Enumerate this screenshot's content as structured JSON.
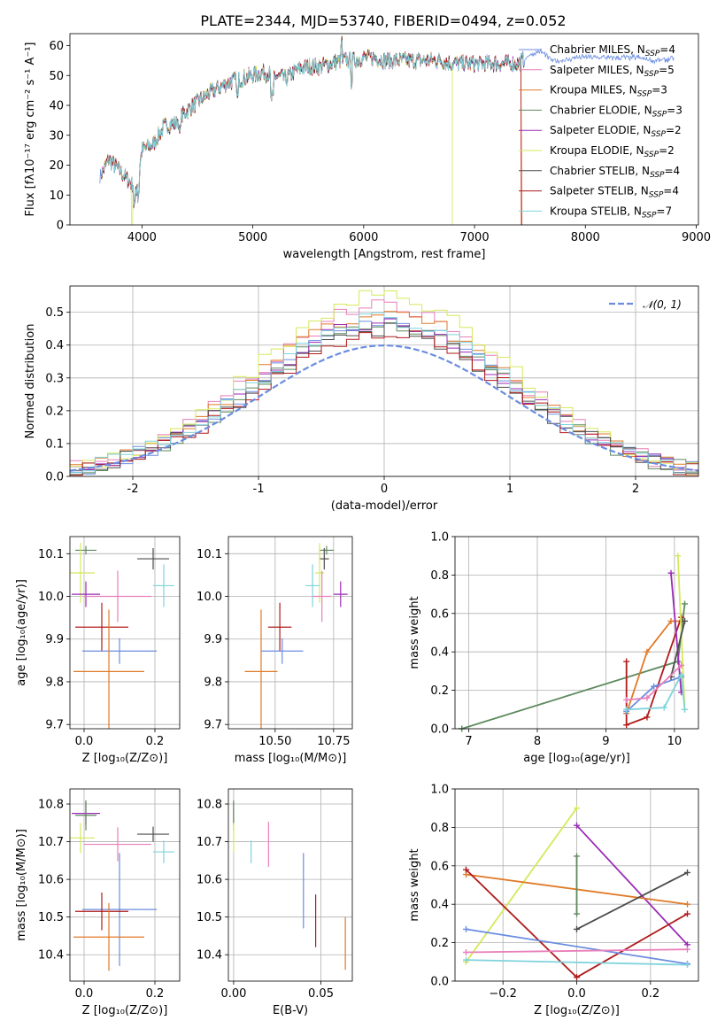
{
  "title": "PLATE=2344, MJD=53740, FIBERID=0494, z=0.052",
  "colors": {
    "chabrier_miles": "#6b8de0",
    "salpeter_miles": "#e87fb9",
    "kroupa_miles": "#e07a28",
    "chabrier_elodie": "#5e8a5e",
    "salpeter_elodie": "#9a2bb5",
    "kroupa_elodie": "#d6e85a",
    "chabrier_stelib": "#4d4d4d",
    "salpeter_stelib": "#b01a1a",
    "kroupa_stelib": "#7fd3dc",
    "gaussian": "#6b8de0"
  },
  "legend_spectrum": [
    {
      "label": "Chabrier MILES, N",
      "sub": "SSP",
      "val": "=4",
      "key": "chabrier_miles"
    },
    {
      "label": "Salpeter MILES, N",
      "sub": "SSP",
      "val": "=5",
      "key": "salpeter_miles"
    },
    {
      "label": "Kroupa MILES, N",
      "sub": "SSP",
      "val": "=3",
      "key": "kroupa_miles"
    },
    {
      "label": "Chabrier ELODIE, N",
      "sub": "SSP",
      "val": "=3",
      "key": "chabrier_elodie"
    },
    {
      "label": "Salpeter ELODIE, N",
      "sub": "SSP",
      "val": "=2",
      "key": "salpeter_elodie"
    },
    {
      "label": "Kroupa ELODIE, N",
      "sub": "SSP",
      "val": "=2",
      "key": "kroupa_elodie"
    },
    {
      "label": "Chabrier STELIB, N",
      "sub": "SSP",
      "val": "=4",
      "key": "chabrier_stelib"
    },
    {
      "label": "Salpeter STELIB, N",
      "sub": "SSP",
      "val": "=4",
      "key": "salpeter_stelib"
    },
    {
      "label": "Kroupa STELIB, N",
      "sub": "SSP",
      "val": "=7",
      "key": "kroupa_stelib"
    }
  ],
  "legend_hist": "𝒩(0, 1)",
  "chart_data": [
    {
      "type": "line",
      "name": "spectrum",
      "xlabel": "wavelength [Angstrom, rest frame]",
      "ylabel": "Flux [f_λ 10^-17 erg cm^-2 s^-1 A^-1]",
      "xlim": [
        3350,
        9020
      ],
      "ylim": [
        0,
        64
      ],
      "xticks": [
        4000,
        5000,
        6000,
        7000,
        8000,
        9000
      ],
      "yticks": [
        0,
        10,
        20,
        30,
        40,
        50,
        60
      ],
      "x": [
        3620,
        3700,
        3800,
        3900,
        3950,
        4000,
        4100,
        4200,
        4300,
        4400,
        4500,
        4600,
        4700,
        4800,
        4900,
        5000,
        5100,
        5200,
        5300,
        5400,
        5500,
        5600,
        5700,
        5800,
        5900,
        6000,
        6100,
        6200,
        6300,
        6400,
        6500,
        6600,
        6700,
        6800,
        6900,
        7000,
        7100,
        7200,
        7300,
        7400,
        7500,
        7600,
        7700,
        7800,
        7900,
        8000,
        8100,
        8200,
        8300,
        8400,
        8500,
        8600,
        8700,
        8800
      ],
      "y": [
        16,
        22,
        18,
        14,
        12,
        25,
        27,
        33,
        34,
        38,
        41,
        44,
        46,
        48,
        49,
        50,
        51,
        50,
        49,
        52,
        53,
        53,
        54,
        55,
        55,
        56,
        56,
        55,
        55,
        55,
        55,
        55,
        55,
        54,
        54,
        54,
        54,
        54,
        54,
        54,
        57,
        58,
        55,
        55,
        56,
        56,
        56,
        56,
        56,
        56,
        56,
        55,
        55,
        56
      ],
      "cutoffs": [
        {
          "key": "kroupa_elodie",
          "x": 6800
        },
        {
          "key": "salpeter_miles",
          "x": 7400
        },
        {
          "key": "kroupa_miles",
          "x": 7420
        },
        {
          "key": "salpeter_stelib",
          "x": 7440
        },
        {
          "key": "kroupa_elodie",
          "x": 3910
        }
      ]
    },
    {
      "type": "histogram",
      "name": "residuals",
      "xlabel": "(data-model)/error",
      "ylabel": "Normed distribution",
      "xlim": [
        -2.5,
        2.5
      ],
      "ylim": [
        0,
        0.58
      ],
      "xticks": [
        -2,
        -1,
        0,
        1,
        2
      ],
      "yticks": [
        0.0,
        0.1,
        0.2,
        0.3,
        0.4,
        0.5
      ],
      "bin_width": 0.1,
      "peaks": {
        "chabrier_miles": 0.47,
        "salpeter_miles": 0.52,
        "kroupa_miles": 0.5,
        "chabrier_elodie": 0.46,
        "salpeter_elodie": 0.47,
        "kroupa_elodie": 0.55,
        "chabrier_stelib": 0.45,
        "salpeter_stelib": 0.44,
        "kroupa_stelib": 0.48
      }
    },
    {
      "type": "errorbar",
      "name": "age-vs-Z",
      "xlabel": "Z [log10(Z/Z⊙)]",
      "ylabel": "age [log10(age/yr)]",
      "xlim": [
        -0.04,
        0.27
      ],
      "ylim": [
        9.69,
        10.14
      ],
      "xticks": [
        0.0,
        0.2
      ],
      "yticks": [
        9.7,
        9.8,
        9.9,
        10.0,
        10.1
      ],
      "points": [
        {
          "key": "chabrier_elodie",
          "x": 0.005,
          "xerr": 0.03,
          "y": 10.108,
          "yerr": 0.01
        },
        {
          "key": "chabrier_stelib",
          "x": 0.195,
          "xerr": 0.045,
          "y": 10.088,
          "yerr": 0.025
        },
        {
          "key": "kroupa_elodie",
          "x": -0.01,
          "xerr": 0.04,
          "y": 10.055,
          "yerr": 0.07
        },
        {
          "key": "kroupa_stelib",
          "x": 0.225,
          "xerr": 0.03,
          "y": 10.025,
          "yerr": 0.05
        },
        {
          "key": "salpeter_elodie",
          "x": 0.005,
          "xerr": 0.04,
          "y": 10.005,
          "yerr": 0.03
        },
        {
          "key": "salpeter_miles",
          "x": 0.095,
          "xerr": 0.095,
          "y": 10.0,
          "yerr": 0.06
        },
        {
          "key": "salpeter_stelib",
          "x": 0.05,
          "xerr": 0.075,
          "y": 9.928,
          "yerr": 0.057
        },
        {
          "key": "chabrier_miles",
          "x": 0.1,
          "xerr": 0.105,
          "y": 9.872,
          "yerr": 0.03
        },
        {
          "key": "kroupa_miles",
          "x": 0.07,
          "xerr": 0.1,
          "y": 9.824,
          "yerr": 0.145
        }
      ]
    },
    {
      "type": "errorbar",
      "name": "age-vs-mass",
      "xlabel": "mass [log10(M/M⊙)]",
      "ylabel": "",
      "xlim": [
        10.3,
        10.83
      ],
      "ylim": [
        9.69,
        10.14
      ],
      "xticks": [
        10.5,
        10.75
      ],
      "yticks": [
        9.7,
        9.8,
        9.9,
        10.0,
        10.1
      ],
      "points": [
        {
          "key": "chabrier_elodie",
          "x": 10.72,
          "xerr": 0.03,
          "y": 10.108,
          "yerr": 0.01
        },
        {
          "key": "chabrier_stelib",
          "x": 10.71,
          "xerr": 0.02,
          "y": 10.088,
          "yerr": 0.025
        },
        {
          "key": "kroupa_elodie",
          "x": 10.69,
          "xerr": 0.02,
          "y": 10.055,
          "yerr": 0.07
        },
        {
          "key": "kroupa_stelib",
          "x": 10.66,
          "xerr": 0.03,
          "y": 10.025,
          "yerr": 0.05
        },
        {
          "key": "salpeter_elodie",
          "x": 10.78,
          "xerr": 0.03,
          "y": 10.005,
          "yerr": 0.03
        },
        {
          "key": "salpeter_miles",
          "x": 10.7,
          "xerr": 0.04,
          "y": 10.0,
          "yerr": 0.06
        },
        {
          "key": "salpeter_stelib",
          "x": 10.52,
          "xerr": 0.05,
          "y": 9.928,
          "yerr": 0.057
        },
        {
          "key": "chabrier_miles",
          "x": 10.53,
          "xerr": 0.09,
          "y": 9.872,
          "yerr": 0.03
        },
        {
          "key": "kroupa_miles",
          "x": 10.44,
          "xerr": 0.07,
          "y": 9.824,
          "yerr": 0.145
        }
      ]
    },
    {
      "type": "line",
      "name": "mass-weight-vs-age",
      "xlabel": "age [log10(age/yr)]",
      "ylabel": "mass weight",
      "xlim": [
        6.8,
        10.35
      ],
      "ylim": [
        0.0,
        1.0
      ],
      "xticks": [
        7,
        8,
        9,
        10
      ],
      "yticks": [
        0.0,
        0.2,
        0.4,
        0.6,
        0.8,
        1.0
      ],
      "series": [
        {
          "key": "chabrier_elodie",
          "x": [
            6.9,
            10.05,
            10.15
          ],
          "y": [
            0.0,
            0.35,
            0.65
          ]
        },
        {
          "key": "kroupa_miles",
          "x": [
            9.3,
            9.6,
            9.95,
            10.1
          ],
          "y": [
            0.08,
            0.4,
            0.56,
            0.56
          ]
        },
        {
          "key": "salpeter_stelib",
          "x": [
            9.3,
            9.3,
            9.6,
            10.1
          ],
          "y": [
            0.35,
            0.02,
            0.06,
            0.58
          ]
        },
        {
          "key": "salpeter_elodie",
          "x": [
            9.95,
            10.1
          ],
          "y": [
            0.81,
            0.19
          ]
        },
        {
          "key": "kroupa_elodie",
          "x": [
            10.05,
            10.15
          ],
          "y": [
            0.9,
            0.1
          ]
        },
        {
          "key": "chabrier_miles",
          "x": [
            9.3,
            9.7,
            10.1
          ],
          "y": [
            0.09,
            0.22,
            0.27
          ]
        },
        {
          "key": "chabrier_stelib",
          "x": [
            9.95,
            10.15
          ],
          "y": [
            0.27,
            0.56
          ]
        },
        {
          "key": "salpeter_miles",
          "x": [
            9.3,
            9.6,
            10.1
          ],
          "y": [
            0.15,
            0.16,
            0.33
          ]
        },
        {
          "key": "kroupa_stelib",
          "x": [
            9.3,
            9.85,
            10.1,
            10.15
          ],
          "y": [
            0.1,
            0.11,
            0.28,
            0.1
          ]
        }
      ]
    },
    {
      "type": "errorbar",
      "name": "mass-vs-Z",
      "xlabel": "Z [log10(Z/Z⊙)]",
      "ylabel": "mass [log10(M/M⊙)]",
      "xlim": [
        -0.04,
        0.27
      ],
      "ylim": [
        10.33,
        10.84
      ],
      "xticks": [
        0.0,
        0.2
      ],
      "yticks": [
        10.4,
        10.5,
        10.6,
        10.7,
        10.8
      ],
      "points": [
        {
          "key": "salpeter_elodie",
          "x": 0.005,
          "xerr": 0.04,
          "y": 10.775,
          "yerr": 0.03
        },
        {
          "key": "chabrier_elodie",
          "x": 0.005,
          "xerr": 0.03,
          "y": 10.77,
          "yerr": 0.04
        },
        {
          "key": "chabrier_stelib",
          "x": 0.195,
          "xerr": 0.045,
          "y": 10.72,
          "yerr": 0.02
        },
        {
          "key": "kroupa_elodie",
          "x": -0.01,
          "xerr": 0.04,
          "y": 10.71,
          "yerr": 0.04
        },
        {
          "key": "salpeter_miles",
          "x": 0.095,
          "xerr": 0.095,
          "y": 10.693,
          "yerr": 0.045
        },
        {
          "key": "kroupa_stelib",
          "x": 0.225,
          "xerr": 0.03,
          "y": 10.673,
          "yerr": 0.03
        },
        {
          "key": "chabrier_miles",
          "x": 0.1,
          "xerr": 0.105,
          "y": 10.52,
          "yerr": 0.15
        },
        {
          "key": "salpeter_stelib",
          "x": 0.05,
          "xerr": 0.075,
          "y": 10.515,
          "yerr": 0.05
        },
        {
          "key": "kroupa_miles",
          "x": 0.07,
          "xerr": 0.1,
          "y": 10.447,
          "yerr": 0.09
        }
      ]
    },
    {
      "type": "errorbar",
      "name": "mass-vs-EBV",
      "xlabel": "E(B-V)",
      "ylabel": "",
      "xlim": [
        -0.003,
        0.068
      ],
      "ylim": [
        10.33,
        10.84
      ],
      "xticks": [
        0.0,
        0.05
      ],
      "yticks": [
        10.4,
        10.5,
        10.6,
        10.7,
        10.8
      ],
      "points": [
        {
          "key": "salpeter_elodie",
          "x": 0.0,
          "xerr": 0.0,
          "y": 10.775,
          "yerr": 0.03
        },
        {
          "key": "chabrier_elodie",
          "x": 0.0,
          "xerr": 0.0,
          "y": 10.77,
          "yerr": 0.04
        },
        {
          "key": "kroupa_elodie",
          "x": 0.0,
          "xerr": 0.0,
          "y": 10.71,
          "yerr": 0.04
        },
        {
          "key": "kroupa_stelib",
          "x": 0.01,
          "xerr": 0.0,
          "y": 10.673,
          "yerr": 0.03
        },
        {
          "key": "salpeter_miles",
          "x": 0.02,
          "xerr": 0.0,
          "y": 10.693,
          "yerr": 0.06
        },
        {
          "key": "chabrier_miles",
          "x": 0.04,
          "xerr": 0.0,
          "y": 10.57,
          "yerr": 0.1
        },
        {
          "key": "salpeter_stelib",
          "x": 0.047,
          "xerr": 0.0,
          "y": 10.49,
          "yerr": 0.07
        },
        {
          "key": "kroupa_miles",
          "x": 0.064,
          "xerr": 0.0,
          "y": 10.43,
          "yerr": 0.07
        }
      ]
    },
    {
      "type": "line",
      "name": "mass-weight-vs-Z",
      "xlabel": "Z [log10(Z/Z⊙)]",
      "ylabel": "mass weight",
      "xlim": [
        -0.33,
        0.33
      ],
      "ylim": [
        0.0,
        1.0
      ],
      "xticks": [
        -0.2,
        0.0,
        0.2
      ],
      "yticks": [
        0.0,
        0.2,
        0.4,
        0.6,
        0.8,
        1.0
      ],
      "series": [
        {
          "key": "kroupa_elodie",
          "x": [
            -0.3,
            0.0
          ],
          "y": [
            0.1,
            0.9
          ]
        },
        {
          "key": "salpeter_elodie",
          "x": [
            0.0,
            0.3
          ],
          "y": [
            0.81,
            0.19
          ]
        },
        {
          "key": "kroupa_miles",
          "x": [
            -0.3,
            0.3
          ],
          "y": [
            0.555,
            0.4
          ]
        },
        {
          "key": "salpeter_stelib",
          "x": [
            -0.3,
            0.0,
            0.3
          ],
          "y": [
            0.58,
            0.02,
            0.35
          ]
        },
        {
          "key": "chabrier_elodie",
          "x": [
            0.0,
            0.0
          ],
          "y": [
            0.35,
            0.65
          ]
        },
        {
          "key": "chabrier_stelib",
          "x": [
            0.0,
            0.3
          ],
          "y": [
            0.27,
            0.565
          ]
        },
        {
          "key": "chabrier_miles",
          "x": [
            -0.3,
            0.3
          ],
          "y": [
            0.27,
            0.09
          ]
        },
        {
          "key": "salpeter_miles",
          "x": [
            -0.3,
            0.3
          ],
          "y": [
            0.15,
            0.165
          ]
        },
        {
          "key": "kroupa_stelib",
          "x": [
            -0.3,
            0.3
          ],
          "y": [
            0.11,
            0.085
          ]
        }
      ]
    }
  ]
}
